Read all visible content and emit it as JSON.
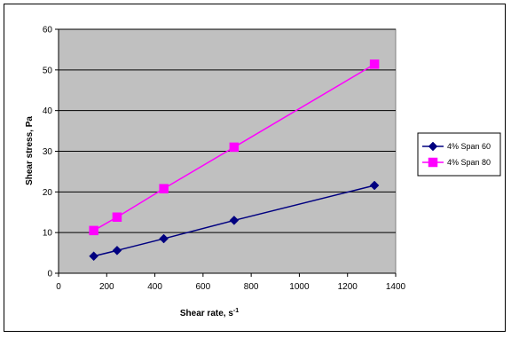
{
  "chart_data": {
    "type": "line",
    "title": "",
    "xlabel": "Shear rate, s",
    "xlabel_sup": "-1",
    "ylabel": "Shear stress, Pa",
    "xlim": [
      0,
      1400
    ],
    "ylim": [
      0,
      60
    ],
    "xticks": [
      "0",
      "200",
      "400",
      "600",
      "800",
      "1000",
      "1200",
      "1400"
    ],
    "yticks": [
      "0",
      "10",
      "20",
      "30",
      "40",
      "50",
      "60"
    ],
    "grid": "horizontal",
    "plot_background": "#c0c0c0",
    "legend_position": "right",
    "series": [
      {
        "name": "4% Span 60",
        "color": "#000080",
        "marker": "diamond",
        "x": [
          146,
          243,
          437,
          729,
          1312
        ],
        "y": [
          4.2,
          5.6,
          8.5,
          13.0,
          21.6
        ]
      },
      {
        "name": "4% Span 80",
        "color": "#ff00ff",
        "marker": "square",
        "x": [
          146,
          243,
          437,
          729,
          1312
        ],
        "y": [
          10.5,
          13.8,
          20.8,
          31.0,
          51.4
        ]
      }
    ]
  }
}
